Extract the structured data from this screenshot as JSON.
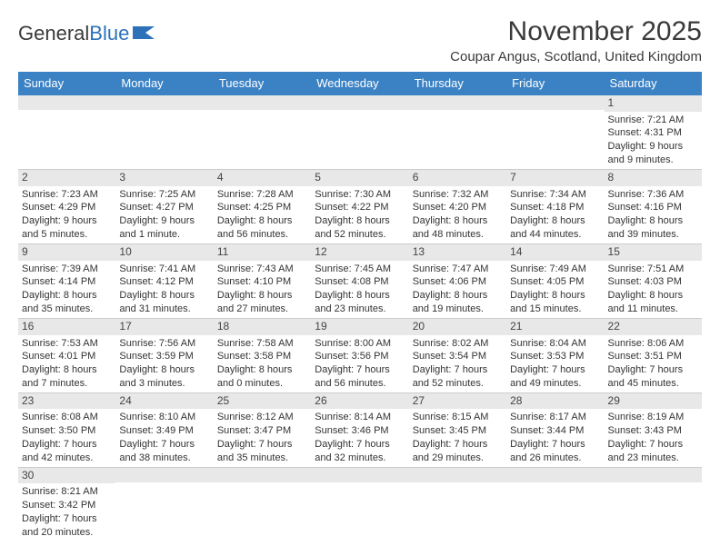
{
  "logo": {
    "text_left": "General",
    "text_right": "Blue"
  },
  "title": "November 2025",
  "location": "Coupar Angus, Scotland, United Kingdom",
  "colors": {
    "header_bg": "#3b82c4",
    "header_text": "#ffffff",
    "row_divider": "#3b82c4",
    "daynum_bg": "#e8e8e8",
    "text": "#333333",
    "logo_blue": "#2d72b8"
  },
  "day_headers": [
    "Sunday",
    "Monday",
    "Tuesday",
    "Wednesday",
    "Thursday",
    "Friday",
    "Saturday"
  ],
  "weeks": [
    [
      {
        "n": "",
        "sr": "",
        "ss": "",
        "dl1": "",
        "dl2": ""
      },
      {
        "n": "",
        "sr": "",
        "ss": "",
        "dl1": "",
        "dl2": ""
      },
      {
        "n": "",
        "sr": "",
        "ss": "",
        "dl1": "",
        "dl2": ""
      },
      {
        "n": "",
        "sr": "",
        "ss": "",
        "dl1": "",
        "dl2": ""
      },
      {
        "n": "",
        "sr": "",
        "ss": "",
        "dl1": "",
        "dl2": ""
      },
      {
        "n": "",
        "sr": "",
        "ss": "",
        "dl1": "",
        "dl2": ""
      },
      {
        "n": "1",
        "sr": "Sunrise: 7:21 AM",
        "ss": "Sunset: 4:31 PM",
        "dl1": "Daylight: 9 hours",
        "dl2": "and 9 minutes."
      }
    ],
    [
      {
        "n": "2",
        "sr": "Sunrise: 7:23 AM",
        "ss": "Sunset: 4:29 PM",
        "dl1": "Daylight: 9 hours",
        "dl2": "and 5 minutes."
      },
      {
        "n": "3",
        "sr": "Sunrise: 7:25 AM",
        "ss": "Sunset: 4:27 PM",
        "dl1": "Daylight: 9 hours",
        "dl2": "and 1 minute."
      },
      {
        "n": "4",
        "sr": "Sunrise: 7:28 AM",
        "ss": "Sunset: 4:25 PM",
        "dl1": "Daylight: 8 hours",
        "dl2": "and 56 minutes."
      },
      {
        "n": "5",
        "sr": "Sunrise: 7:30 AM",
        "ss": "Sunset: 4:22 PM",
        "dl1": "Daylight: 8 hours",
        "dl2": "and 52 minutes."
      },
      {
        "n": "6",
        "sr": "Sunrise: 7:32 AM",
        "ss": "Sunset: 4:20 PM",
        "dl1": "Daylight: 8 hours",
        "dl2": "and 48 minutes."
      },
      {
        "n": "7",
        "sr": "Sunrise: 7:34 AM",
        "ss": "Sunset: 4:18 PM",
        "dl1": "Daylight: 8 hours",
        "dl2": "and 44 minutes."
      },
      {
        "n": "8",
        "sr": "Sunrise: 7:36 AM",
        "ss": "Sunset: 4:16 PM",
        "dl1": "Daylight: 8 hours",
        "dl2": "and 39 minutes."
      }
    ],
    [
      {
        "n": "9",
        "sr": "Sunrise: 7:39 AM",
        "ss": "Sunset: 4:14 PM",
        "dl1": "Daylight: 8 hours",
        "dl2": "and 35 minutes."
      },
      {
        "n": "10",
        "sr": "Sunrise: 7:41 AM",
        "ss": "Sunset: 4:12 PM",
        "dl1": "Daylight: 8 hours",
        "dl2": "and 31 minutes."
      },
      {
        "n": "11",
        "sr": "Sunrise: 7:43 AM",
        "ss": "Sunset: 4:10 PM",
        "dl1": "Daylight: 8 hours",
        "dl2": "and 27 minutes."
      },
      {
        "n": "12",
        "sr": "Sunrise: 7:45 AM",
        "ss": "Sunset: 4:08 PM",
        "dl1": "Daylight: 8 hours",
        "dl2": "and 23 minutes."
      },
      {
        "n": "13",
        "sr": "Sunrise: 7:47 AM",
        "ss": "Sunset: 4:06 PM",
        "dl1": "Daylight: 8 hours",
        "dl2": "and 19 minutes."
      },
      {
        "n": "14",
        "sr": "Sunrise: 7:49 AM",
        "ss": "Sunset: 4:05 PM",
        "dl1": "Daylight: 8 hours",
        "dl2": "and 15 minutes."
      },
      {
        "n": "15",
        "sr": "Sunrise: 7:51 AM",
        "ss": "Sunset: 4:03 PM",
        "dl1": "Daylight: 8 hours",
        "dl2": "and 11 minutes."
      }
    ],
    [
      {
        "n": "16",
        "sr": "Sunrise: 7:53 AM",
        "ss": "Sunset: 4:01 PM",
        "dl1": "Daylight: 8 hours",
        "dl2": "and 7 minutes."
      },
      {
        "n": "17",
        "sr": "Sunrise: 7:56 AM",
        "ss": "Sunset: 3:59 PM",
        "dl1": "Daylight: 8 hours",
        "dl2": "and 3 minutes."
      },
      {
        "n": "18",
        "sr": "Sunrise: 7:58 AM",
        "ss": "Sunset: 3:58 PM",
        "dl1": "Daylight: 8 hours",
        "dl2": "and 0 minutes."
      },
      {
        "n": "19",
        "sr": "Sunrise: 8:00 AM",
        "ss": "Sunset: 3:56 PM",
        "dl1": "Daylight: 7 hours",
        "dl2": "and 56 minutes."
      },
      {
        "n": "20",
        "sr": "Sunrise: 8:02 AM",
        "ss": "Sunset: 3:54 PM",
        "dl1": "Daylight: 7 hours",
        "dl2": "and 52 minutes."
      },
      {
        "n": "21",
        "sr": "Sunrise: 8:04 AM",
        "ss": "Sunset: 3:53 PM",
        "dl1": "Daylight: 7 hours",
        "dl2": "and 49 minutes."
      },
      {
        "n": "22",
        "sr": "Sunrise: 8:06 AM",
        "ss": "Sunset: 3:51 PM",
        "dl1": "Daylight: 7 hours",
        "dl2": "and 45 minutes."
      }
    ],
    [
      {
        "n": "23",
        "sr": "Sunrise: 8:08 AM",
        "ss": "Sunset: 3:50 PM",
        "dl1": "Daylight: 7 hours",
        "dl2": "and 42 minutes."
      },
      {
        "n": "24",
        "sr": "Sunrise: 8:10 AM",
        "ss": "Sunset: 3:49 PM",
        "dl1": "Daylight: 7 hours",
        "dl2": "and 38 minutes."
      },
      {
        "n": "25",
        "sr": "Sunrise: 8:12 AM",
        "ss": "Sunset: 3:47 PM",
        "dl1": "Daylight: 7 hours",
        "dl2": "and 35 minutes."
      },
      {
        "n": "26",
        "sr": "Sunrise: 8:14 AM",
        "ss": "Sunset: 3:46 PM",
        "dl1": "Daylight: 7 hours",
        "dl2": "and 32 minutes."
      },
      {
        "n": "27",
        "sr": "Sunrise: 8:15 AM",
        "ss": "Sunset: 3:45 PM",
        "dl1": "Daylight: 7 hours",
        "dl2": "and 29 minutes."
      },
      {
        "n": "28",
        "sr": "Sunrise: 8:17 AM",
        "ss": "Sunset: 3:44 PM",
        "dl1": "Daylight: 7 hours",
        "dl2": "and 26 minutes."
      },
      {
        "n": "29",
        "sr": "Sunrise: 8:19 AM",
        "ss": "Sunset: 3:43 PM",
        "dl1": "Daylight: 7 hours",
        "dl2": "and 23 minutes."
      }
    ],
    [
      {
        "n": "30",
        "sr": "Sunrise: 8:21 AM",
        "ss": "Sunset: 3:42 PM",
        "dl1": "Daylight: 7 hours",
        "dl2": "and 20 minutes."
      },
      {
        "n": "",
        "sr": "",
        "ss": "",
        "dl1": "",
        "dl2": ""
      },
      {
        "n": "",
        "sr": "",
        "ss": "",
        "dl1": "",
        "dl2": ""
      },
      {
        "n": "",
        "sr": "",
        "ss": "",
        "dl1": "",
        "dl2": ""
      },
      {
        "n": "",
        "sr": "",
        "ss": "",
        "dl1": "",
        "dl2": ""
      },
      {
        "n": "",
        "sr": "",
        "ss": "",
        "dl1": "",
        "dl2": ""
      },
      {
        "n": "",
        "sr": "",
        "ss": "",
        "dl1": "",
        "dl2": ""
      }
    ]
  ]
}
